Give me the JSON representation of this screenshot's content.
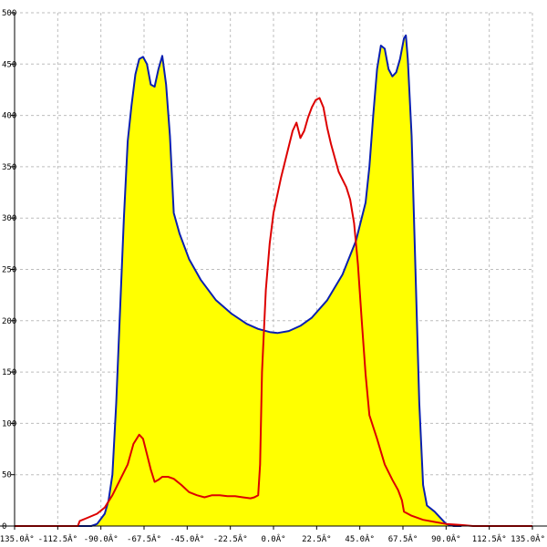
{
  "chart_data": {
    "type": "line",
    "title": "",
    "xlabel": "",
    "ylabel": "",
    "xlim": [
      -135,
      135
    ],
    "ylim": [
      0,
      500
    ],
    "grid": true,
    "x_ticks": [
      -135,
      -112.5,
      -90,
      -67.5,
      -45,
      -22.5,
      0,
      22.5,
      45,
      67.5,
      90,
      112.5,
      135
    ],
    "x_tick_labels": [
      "-135.0Â°",
      "-112.5Â°",
      "-90.0Â°",
      "-67.5Â°",
      "-45.0Â°",
      "-22.5Â°",
      "0.0Â°",
      "22.5Â°",
      "45.0Â°",
      "67.5Â°",
      "90.0Â°",
      "112.5Â°",
      "135.0Â°"
    ],
    "y_ticks": [
      0,
      50,
      100,
      150,
      200,
      250,
      300,
      350,
      400,
      450,
      500
    ],
    "y_tick_labels": [
      "0",
      "50",
      "100",
      "150",
      "200",
      "250",
      "300",
      "350",
      "400",
      "450",
      "500"
    ],
    "series": [
      {
        "color": "#0a1fb0",
        "fill": "#ffff00",
        "points": [
          [
            -102,
            0
          ],
          [
            -95,
            0
          ],
          [
            -92,
            2
          ],
          [
            -88,
            12
          ],
          [
            -86,
            25
          ],
          [
            -84,
            50
          ],
          [
            -82,
            120
          ],
          [
            -80,
            210
          ],
          [
            -78,
            300
          ],
          [
            -76,
            375
          ],
          [
            -74,
            410
          ],
          [
            -72,
            440
          ],
          [
            -70,
            455
          ],
          [
            -68,
            457
          ],
          [
            -66,
            450
          ],
          [
            -64,
            430
          ],
          [
            -62,
            428
          ],
          [
            -60,
            445
          ],
          [
            -58,
            458
          ],
          [
            -56,
            430
          ],
          [
            -54,
            380
          ],
          [
            -52,
            305
          ],
          [
            -49,
            285
          ],
          [
            -44,
            260
          ],
          [
            -38,
            240
          ],
          [
            -30,
            220
          ],
          [
            -22,
            207
          ],
          [
            -14,
            197
          ],
          [
            -8,
            192
          ],
          [
            -2,
            189
          ],
          [
            2,
            188
          ],
          [
            8,
            190
          ],
          [
            14,
            195
          ],
          [
            20,
            203
          ],
          [
            28,
            220
          ],
          [
            36,
            245
          ],
          [
            43,
            278
          ],
          [
            48,
            315
          ],
          [
            50,
            350
          ],
          [
            52,
            400
          ],
          [
            54,
            445
          ],
          [
            56,
            468
          ],
          [
            58,
            465
          ],
          [
            60,
            445
          ],
          [
            62,
            438
          ],
          [
            64,
            442
          ],
          [
            66,
            455
          ],
          [
            68,
            475
          ],
          [
            69,
            478
          ],
          [
            70,
            455
          ],
          [
            72,
            380
          ],
          [
            74,
            250
          ],
          [
            76,
            120
          ],
          [
            78,
            40
          ],
          [
            80,
            20
          ],
          [
            84,
            14
          ],
          [
            88,
            6
          ],
          [
            90,
            2
          ],
          [
            94,
            0
          ],
          [
            98,
            0
          ]
        ]
      },
      {
        "color": "#dd0000",
        "fill": "none",
        "points": [
          [
            -135,
            0
          ],
          [
            -102,
            0
          ],
          [
            -101,
            5
          ],
          [
            -97,
            8
          ],
          [
            -92,
            12
          ],
          [
            -88,
            18
          ],
          [
            -84,
            30
          ],
          [
            -80,
            45
          ],
          [
            -76,
            60
          ],
          [
            -73,
            80
          ],
          [
            -70,
            89
          ],
          [
            -68,
            85
          ],
          [
            -66,
            70
          ],
          [
            -64,
            55
          ],
          [
            -62,
            43
          ],
          [
            -60,
            45
          ],
          [
            -58,
            48
          ],
          [
            -55,
            48
          ],
          [
            -52,
            46
          ],
          [
            -48,
            40
          ],
          [
            -44,
            33
          ],
          [
            -40,
            30
          ],
          [
            -36,
            28
          ],
          [
            -32,
            30
          ],
          [
            -28,
            30
          ],
          [
            -24,
            29
          ],
          [
            -20,
            29
          ],
          [
            -16,
            28
          ],
          [
            -12,
            27
          ],
          [
            -10,
            28
          ],
          [
            -8,
            30
          ],
          [
            -7,
            60
          ],
          [
            -6,
            150
          ],
          [
            -4,
            230
          ],
          [
            -2,
            275
          ],
          [
            0,
            305
          ],
          [
            4,
            340
          ],
          [
            8,
            370
          ],
          [
            10,
            385
          ],
          [
            12,
            393
          ],
          [
            14,
            378
          ],
          [
            16,
            385
          ],
          [
            18,
            398
          ],
          [
            20,
            408
          ],
          [
            22,
            415
          ],
          [
            24,
            417
          ],
          [
            26,
            408
          ],
          [
            28,
            388
          ],
          [
            30,
            372
          ],
          [
            34,
            345
          ],
          [
            38,
            330
          ],
          [
            40,
            318
          ],
          [
            42,
            295
          ],
          [
            44,
            255
          ],
          [
            46,
            200
          ],
          [
            48,
            148
          ],
          [
            50,
            108
          ],
          [
            54,
            85
          ],
          [
            58,
            60
          ],
          [
            62,
            45
          ],
          [
            65,
            35
          ],
          [
            67,
            25
          ],
          [
            68,
            14
          ],
          [
            72,
            10
          ],
          [
            78,
            6
          ],
          [
            84,
            4
          ],
          [
            90,
            2
          ],
          [
            98,
            1
          ],
          [
            104,
            0
          ],
          [
            135,
            0
          ]
        ]
      }
    ]
  }
}
